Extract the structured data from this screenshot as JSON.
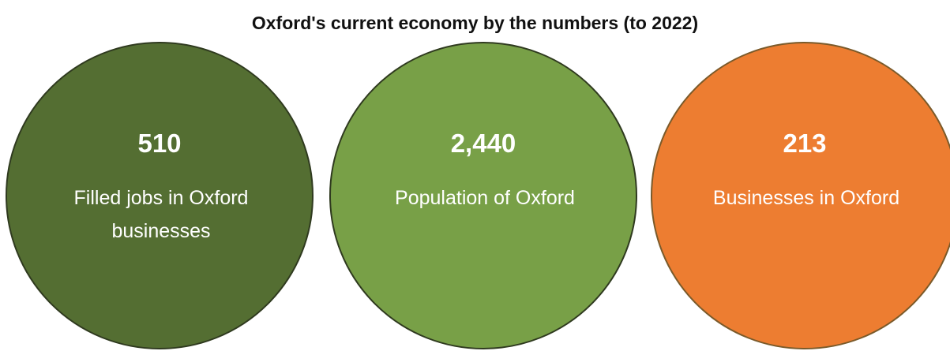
{
  "title": "Oxford's current economy by the numbers (to 2022)",
  "stats": [
    {
      "value": "510",
      "label": "Filled jobs in Oxford businesses",
      "color": "#546e32"
    },
    {
      "value": "2,440",
      "label": "Population of Oxford",
      "color": "#78a047"
    },
    {
      "value": "213",
      "label": "Businesses in Oxford",
      "color": "#ed7d31"
    }
  ]
}
